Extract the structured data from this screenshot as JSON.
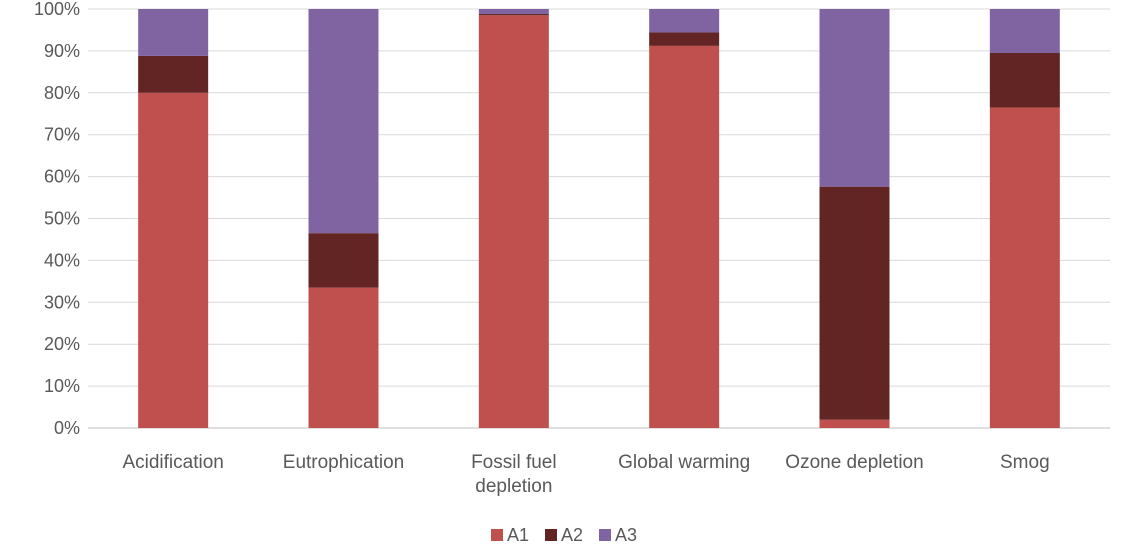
{
  "chart_data": {
    "type": "bar",
    "stacked": true,
    "percent_stacked": true,
    "categories": [
      "Acidification",
      "Eutrophication",
      "Fossil fuel depletion",
      "Global warming",
      "Ozone depletion",
      "Smog"
    ],
    "category_label_lines": [
      [
        "Acidification"
      ],
      [
        "Eutrophication"
      ],
      [
        "Fossil fuel",
        "depletion"
      ],
      [
        "Global warming"
      ],
      [
        "Ozone depletion"
      ],
      [
        "Smog"
      ]
    ],
    "series": [
      {
        "name": "A1",
        "color": "#C0504D",
        "values": [
          80,
          33.5,
          98.5,
          91.2,
          2,
          76.5
        ]
      },
      {
        "name": "A2",
        "color": "#632523",
        "values": [
          8.8,
          13,
          0.3,
          3.2,
          55.6,
          13
        ]
      },
      {
        "name": "A3",
        "color": "#8064A2",
        "values": [
          11.2,
          53.5,
          1.2,
          5.6,
          42.4,
          10.5
        ]
      }
    ],
    "y_ticks": [
      "0%",
      "10%",
      "20%",
      "30%",
      "40%",
      "50%",
      "60%",
      "70%",
      "80%",
      "90%",
      "100%"
    ],
    "ylim": [
      0,
      100
    ],
    "grid": true,
    "legend_position": "bottom",
    "title": "",
    "xlabel": "",
    "ylabel": ""
  }
}
